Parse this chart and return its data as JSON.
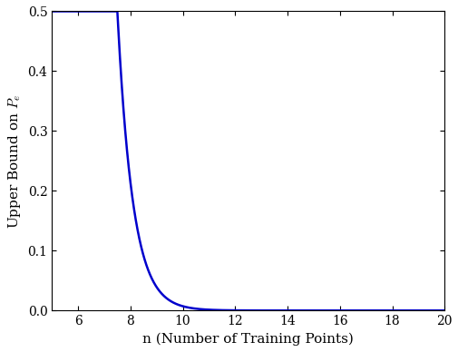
{
  "x_min": 5,
  "x_max": 20,
  "y_min": 0.0,
  "y_max": 0.5,
  "x_ticks": [
    6,
    8,
    10,
    12,
    14,
    16,
    18,
    20
  ],
  "y_ticks": [
    0.0,
    0.1,
    0.2,
    0.3,
    0.4,
    0.5
  ],
  "xlabel": "n (Number of Training Points)",
  "ylabel": "Upper Bound on $P_e$",
  "line_color": "#0000cc",
  "line_width": 1.8,
  "figsize": [
    5.06,
    3.88
  ],
  "dpi": 100,
  "n0": 7.5,
  "decay": 1.7
}
